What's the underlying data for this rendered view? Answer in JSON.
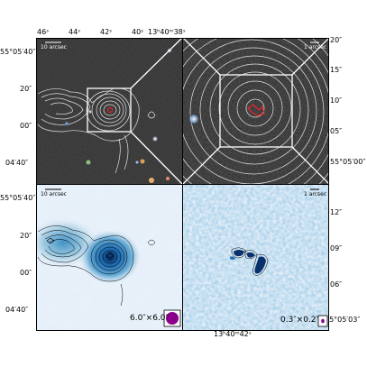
{
  "top_axis": {
    "ra_labels": [
      "46ˢ",
      "44ˢ",
      "42ˢ",
      "40ˢ",
      "13ʰ40ᵐ38ˢ"
    ]
  },
  "left_axis_top": {
    "dec_labels": [
      "55°05′40″",
      "20″",
      "00″",
      "04′40″"
    ]
  },
  "right_axis_top": {
    "dec_labels": [
      "20″",
      "15″",
      "10″",
      "05″",
      "55°05′00″"
    ]
  },
  "left_axis_bottom": {
    "dec_labels": [
      "55°05′40″",
      "20″",
      "00″",
      "04′40″"
    ]
  },
  "right_axis_bottom": {
    "dec_labels": [
      "12″",
      "09″",
      "06″",
      "55°05′03″"
    ]
  },
  "bottom_axis": {
    "ra_label": "13ʰ40ᵐ42ˢ"
  },
  "panels": {
    "top_left": {
      "scalebar": "10 arcsec"
    },
    "top_right": {
      "scalebar": "1 arcsec"
    },
    "bottom_left": {
      "scalebar": "10 arcsec",
      "beam": "6.0″×6.0″",
      "beam_color": "#8b008b"
    },
    "bottom_right": {
      "scalebar": "1 arcsec",
      "beam": "0.3″×0.2″",
      "beam_color": "#8b008b"
    }
  },
  "colors": {
    "optical_background": "#2a2a2a",
    "contour_white": "#ffffff",
    "radio_blue_dark": "#08306b",
    "radio_blue_light": "#deebf7",
    "marker_red": "#e0282e"
  }
}
